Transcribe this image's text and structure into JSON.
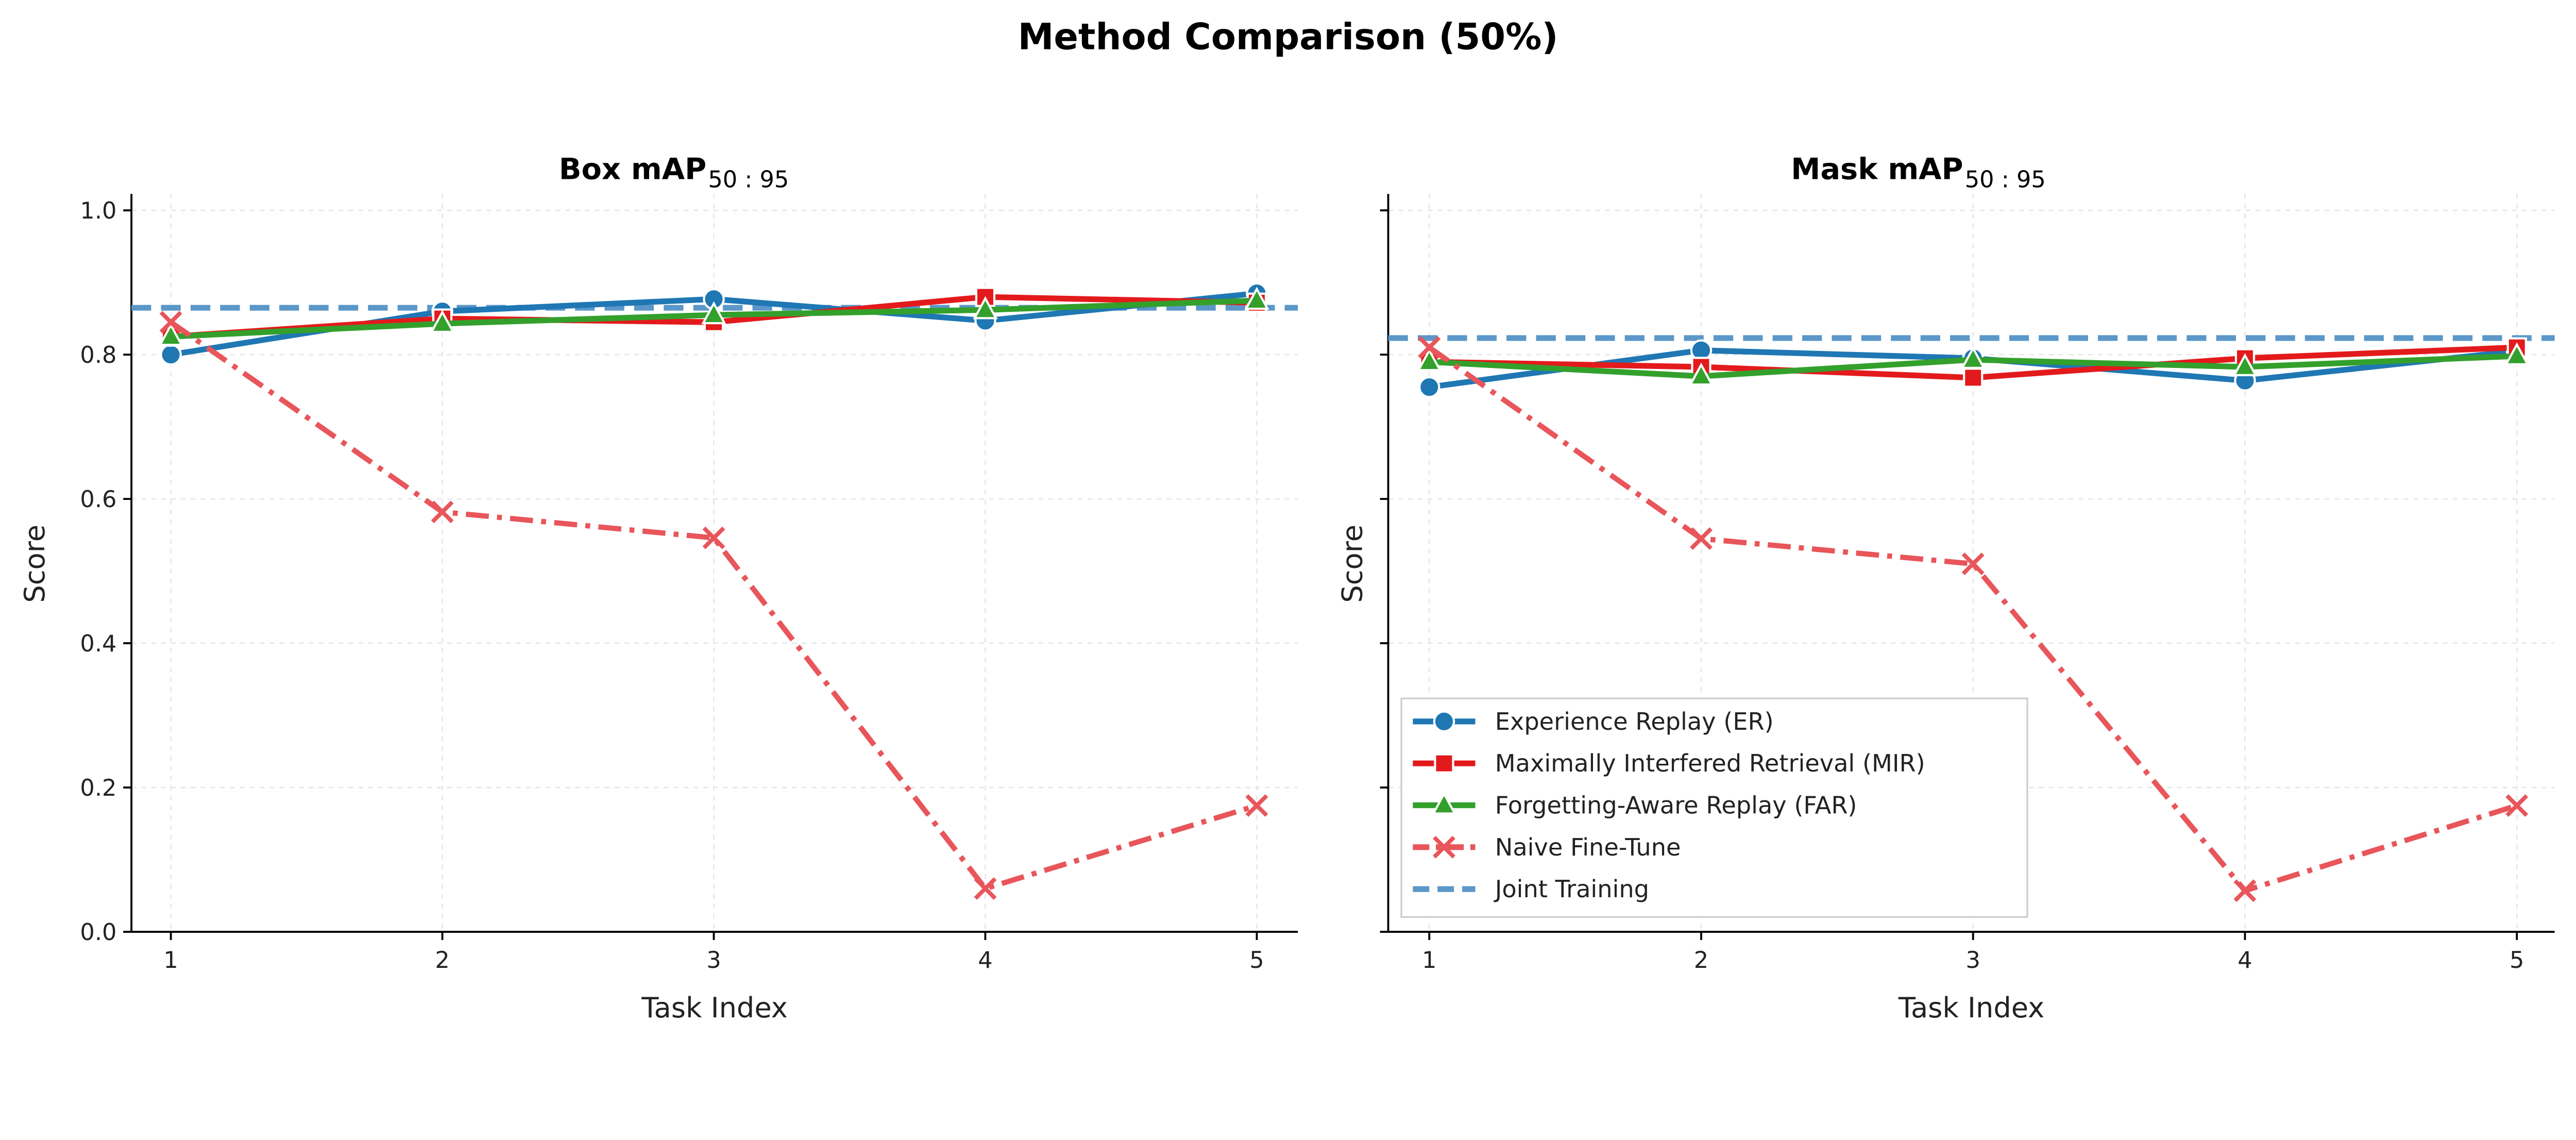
{
  "chart_data": {
    "title": "Method Comparison (50%)",
    "colors": {
      "Experience Replay (ER)": "#1f77b4",
      "Maximally Interfered Retrieval (MIR)": "#e31a1c",
      "Forgetting-Aware Replay (FAR)": "#33a02c",
      "Naive Fine-Tune": "#e8555a",
      "Joint Training": "#5b97c9"
    },
    "legend_placement": "lower-left of right panel",
    "panels": [
      {
        "type": "line",
        "title": "Box mAP",
        "title_subscript": "50 : 95",
        "xlabel": "Task Index",
        "ylabel": "Score",
        "x": [
          1,
          2,
          3,
          4,
          5
        ],
        "xticks": [
          "1",
          "2",
          "3",
          "4",
          "5"
        ],
        "ylim": [
          0,
          1.02
        ],
        "yticks": [
          "0.0",
          "0.2",
          "0.4",
          "0.6",
          "0.8",
          "1.0"
        ],
        "grid": true,
        "series": [
          {
            "name": "Experience Replay (ER)",
            "marker": "circle",
            "values": [
              0.8,
              0.86,
              0.877,
              0.847,
              0.885
            ]
          },
          {
            "name": "Maximally Interfered Retrieval (MIR)",
            "marker": "square",
            "values": [
              0.825,
              0.85,
              0.845,
              0.88,
              0.872
            ]
          },
          {
            "name": "Forgetting-Aware Replay (FAR)",
            "marker": "triangle",
            "values": [
              0.825,
              0.843,
              0.855,
              0.862,
              0.875
            ]
          },
          {
            "name": "Naive Fine-Tune",
            "marker": "x",
            "style": "dash-dot",
            "values": [
              0.845,
              0.582,
              0.546,
              0.06,
              0.175
            ]
          }
        ],
        "hline": {
          "name": "Joint Training",
          "value": 0.865
        }
      },
      {
        "type": "line",
        "title": "Mask mAP",
        "title_subscript": "50 : 95",
        "xlabel": "Task Index",
        "ylabel": "Score",
        "x": [
          1,
          2,
          3,
          4,
          5
        ],
        "xticks": [
          "1",
          "2",
          "3",
          "4",
          "5"
        ],
        "ylim": [
          0,
          1.02
        ],
        "yticks": [],
        "grid": true,
        "series": [
          {
            "name": "Experience Replay (ER)",
            "marker": "circle",
            "values": [
              0.755,
              0.806,
              0.795,
              0.764,
              0.805
            ]
          },
          {
            "name": "Maximally Interfered Retrieval (MIR)",
            "marker": "square",
            "values": [
              0.79,
              0.783,
              0.768,
              0.795,
              0.81
            ]
          },
          {
            "name": "Forgetting-Aware Replay (FAR)",
            "marker": "triangle",
            "values": [
              0.79,
              0.77,
              0.793,
              0.783,
              0.798
            ]
          },
          {
            "name": "Naive Fine-Tune",
            "marker": "x",
            "style": "dash-dot",
            "values": [
              0.81,
              0.545,
              0.51,
              0.057,
              0.175
            ]
          }
        ],
        "hline": {
          "name": "Joint Training",
          "value": 0.823
        }
      }
    ],
    "legend": [
      "Experience Replay (ER)",
      "Maximally Interfered Retrieval (MIR)",
      "Forgetting-Aware Replay (FAR)",
      "Naive Fine-Tune",
      "Joint Training"
    ]
  }
}
